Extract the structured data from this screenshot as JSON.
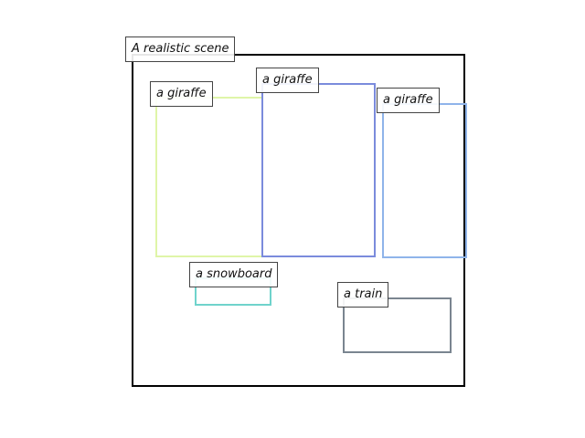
{
  "scene": {
    "title": "A realistic scene",
    "regions": [
      {
        "label": "a giraffe",
        "color": "#dff5a8"
      },
      {
        "label": "a giraffe",
        "color": "#7b8bdc"
      },
      {
        "label": "a giraffe",
        "color": "#8fb4ea"
      },
      {
        "label": "a snowboard",
        "color": "#6fd3cc"
      },
      {
        "label": "a train",
        "color": "#7a8590"
      }
    ]
  }
}
